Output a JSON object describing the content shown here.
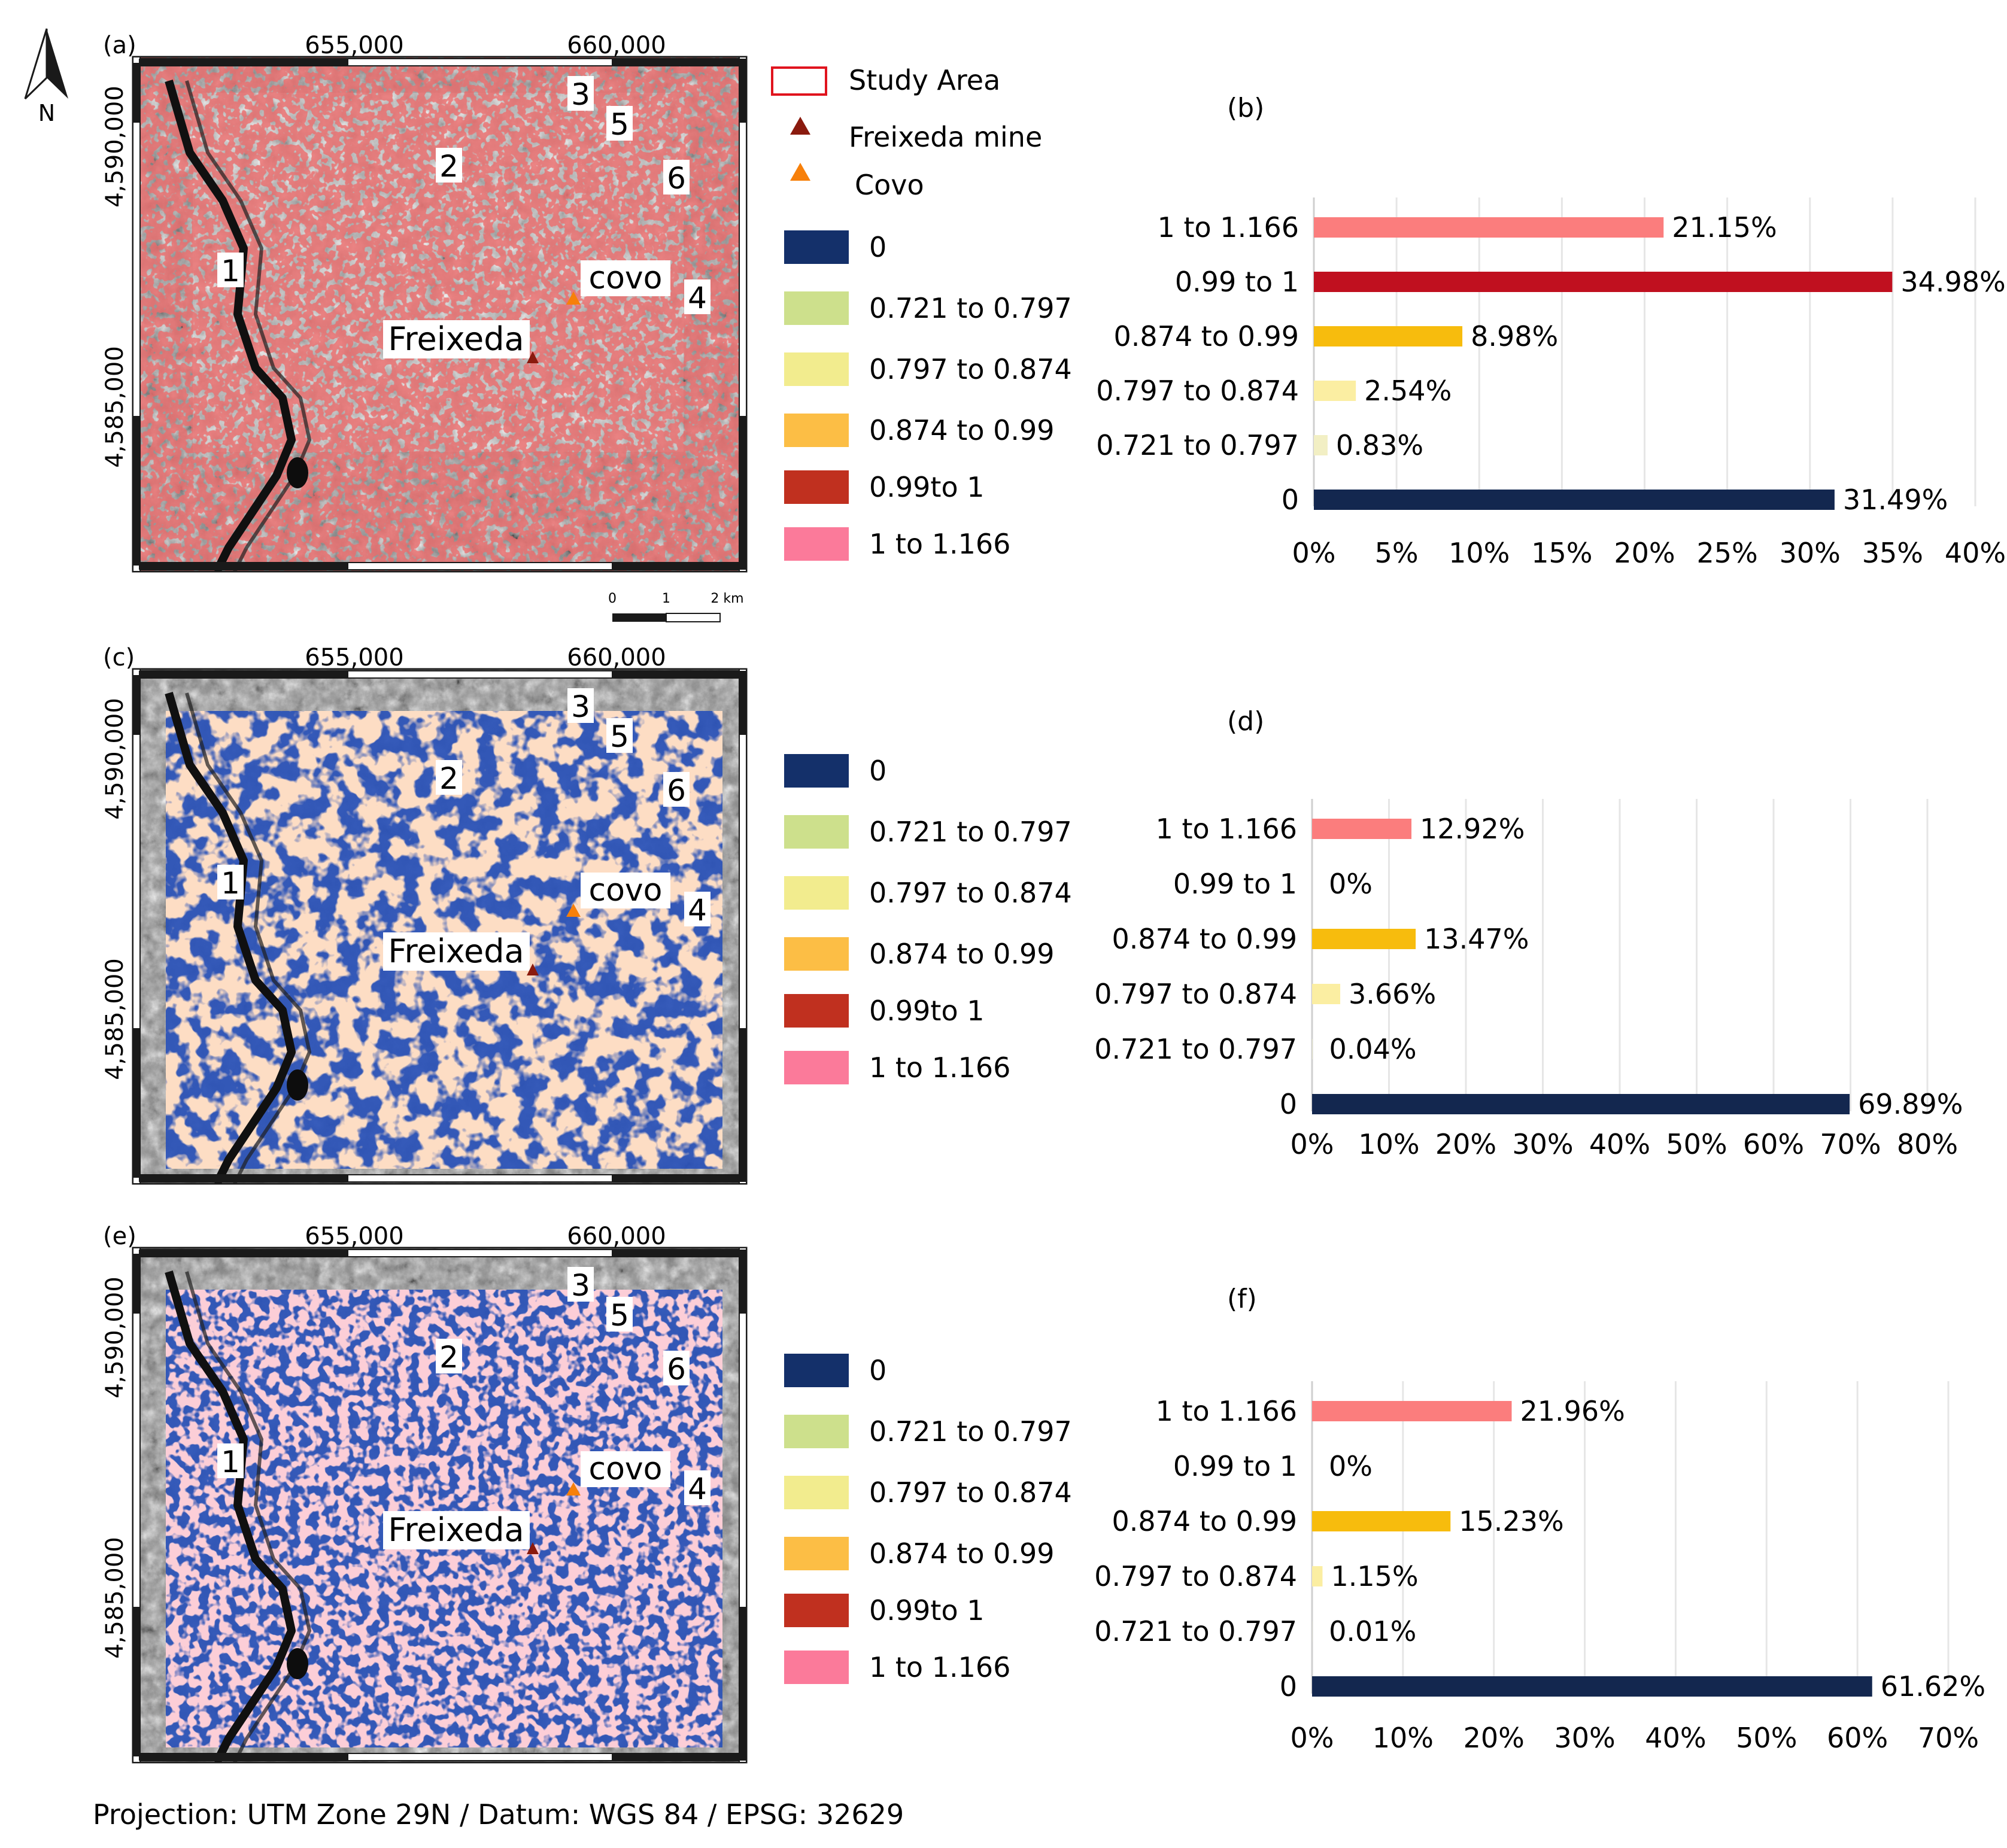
{
  "north_arrow": {
    "label": "N"
  },
  "footer": {
    "projection": "Projection: UTM Zone 29N / Datum: WGS 84 / EPSG: 32629"
  },
  "scale_bar": {
    "ticks": [
      "0",
      "1",
      "2 km"
    ]
  },
  "map_legend": {
    "study_area": "Study Area",
    "freixeda_mine": "Freixeda mine",
    "covo": "Covo"
  },
  "colors": {
    "c0": "#14306a",
    "c721": "#cde08c",
    "c797": "#f2ec8e",
    "c874": "#fcbe45",
    "c990": "#c0301f",
    "c1": "#fb7a9a",
    "bar0": "#13274f",
    "bar721": "#f2efc4",
    "bar797": "#fbeea2",
    "bar874": "#f7bc0d",
    "bar990": "#c0101f",
    "bar1": "#fb7d7d",
    "study_area_outline": "#e0141e",
    "mine_marker": "#8a1a0e",
    "covo_marker": "#f7800a",
    "map_blue_overlay": "#2a52b8"
  },
  "maps": [
    {
      "panel": "(a)",
      "style": "grayscale",
      "x_ticks": [
        "655,000",
        "660,000"
      ],
      "y_ticks": [
        "4,590,000",
        "4,585,000"
      ],
      "labels": {
        "n1": "1",
        "n2": "2",
        "n3": "3",
        "n4": "4",
        "n5": "5",
        "n6": "6",
        "covo": "covo",
        "freixeda": "Freixeda"
      },
      "legend": [
        "0",
        "0.721 to 0.797",
        "0.797 to 0.874",
        "0.874 to 0.99",
        "0.99to 1",
        "1 to 1.166"
      ]
    },
    {
      "panel": "(c)",
      "style": "classified",
      "x_ticks": [
        "655,000",
        "660,000"
      ],
      "y_ticks": [
        "4,590,000",
        "4,585,000"
      ],
      "labels": {
        "n1": "1",
        "n2": "2",
        "n3": "3",
        "n4": "4",
        "n5": "5",
        "n6": "6",
        "covo": "covo",
        "freixeda": "Freixeda"
      },
      "legend": [
        "0",
        "0.721 to 0.797",
        "0.797 to 0.874",
        "0.874 to 0.99",
        "0.99to 1",
        "1 to 1.166"
      ]
    },
    {
      "panel": "(e)",
      "style": "classified",
      "x_ticks": [
        "655,000",
        "660,000"
      ],
      "y_ticks": [
        "4,590,000",
        "4,585,000"
      ],
      "labels": {
        "n1": "1",
        "n2": "2",
        "n3": "3",
        "n4": "4",
        "n5": "5",
        "n6": "6",
        "covo": "covo",
        "freixeda": "Freixeda"
      },
      "legend": [
        "0",
        "0.721 to 0.797",
        "0.797 to 0.874",
        "0.874 to 0.99",
        "0.99to 1",
        "1 to 1.166"
      ]
    }
  ],
  "chart_data": [
    {
      "panel": "(b)",
      "type": "bar",
      "orientation": "horizontal",
      "categories": [
        "1 to 1.166",
        "0.99 to 1",
        "0.874 to 0.99",
        "0.797 to 0.874",
        "0.721 to 0.797",
        "0"
      ],
      "values": [
        21.15,
        34.98,
        8.98,
        2.54,
        0.83,
        31.49
      ],
      "value_labels": [
        "21.15%",
        "34.98%",
        "8.98%",
        "2.54%",
        "0.83%",
        "31.49%"
      ],
      "xlim": [
        0,
        40
      ],
      "x_ticks": [
        0,
        5,
        10,
        15,
        20,
        25,
        30,
        35,
        40
      ],
      "x_tick_labels": [
        "0%",
        "5%",
        "10%",
        "15%",
        "20%",
        "25%",
        "30%",
        "35%",
        "40%"
      ],
      "grid": "vertical"
    },
    {
      "panel": "(d)",
      "type": "bar",
      "orientation": "horizontal",
      "categories": [
        "1 to 1.166",
        "0.99 to 1",
        "0.874 to 0.99",
        "0.797 to 0.874",
        "0.721 to 0.797",
        "0"
      ],
      "values": [
        12.92,
        0,
        13.47,
        3.66,
        0.04,
        69.89
      ],
      "value_labels": [
        "12.92%",
        "0%",
        "13.47%",
        "3.66%",
        "0.04%",
        "69.89%"
      ],
      "xlim": [
        0,
        80
      ],
      "x_ticks": [
        0,
        10,
        20,
        30,
        40,
        50,
        60,
        70,
        80
      ],
      "x_tick_labels": [
        "0%",
        "10%",
        "20%",
        "30%",
        "40%",
        "50%",
        "60%",
        "70%",
        "80%"
      ],
      "grid": "vertical"
    },
    {
      "panel": "(f)",
      "type": "bar",
      "orientation": "horizontal",
      "categories": [
        "1 to 1.166",
        "0.99 to 1",
        "0.874 to 0.99",
        "0.797 to 0.874",
        "0.721 to 0.797",
        "0"
      ],
      "values": [
        21.96,
        0,
        15.23,
        1.15,
        0.01,
        61.62
      ],
      "value_labels": [
        "21.96%",
        "0%",
        "15.23%",
        "1.15%",
        "0.01%",
        "61.62%"
      ],
      "xlim": [
        0,
        70
      ],
      "x_ticks": [
        0,
        10,
        20,
        30,
        40,
        50,
        60,
        70
      ],
      "x_tick_labels": [
        "0%",
        "10%",
        "20%",
        "30%",
        "40%",
        "50%",
        "60%",
        "70%"
      ],
      "grid": "vertical"
    }
  ]
}
